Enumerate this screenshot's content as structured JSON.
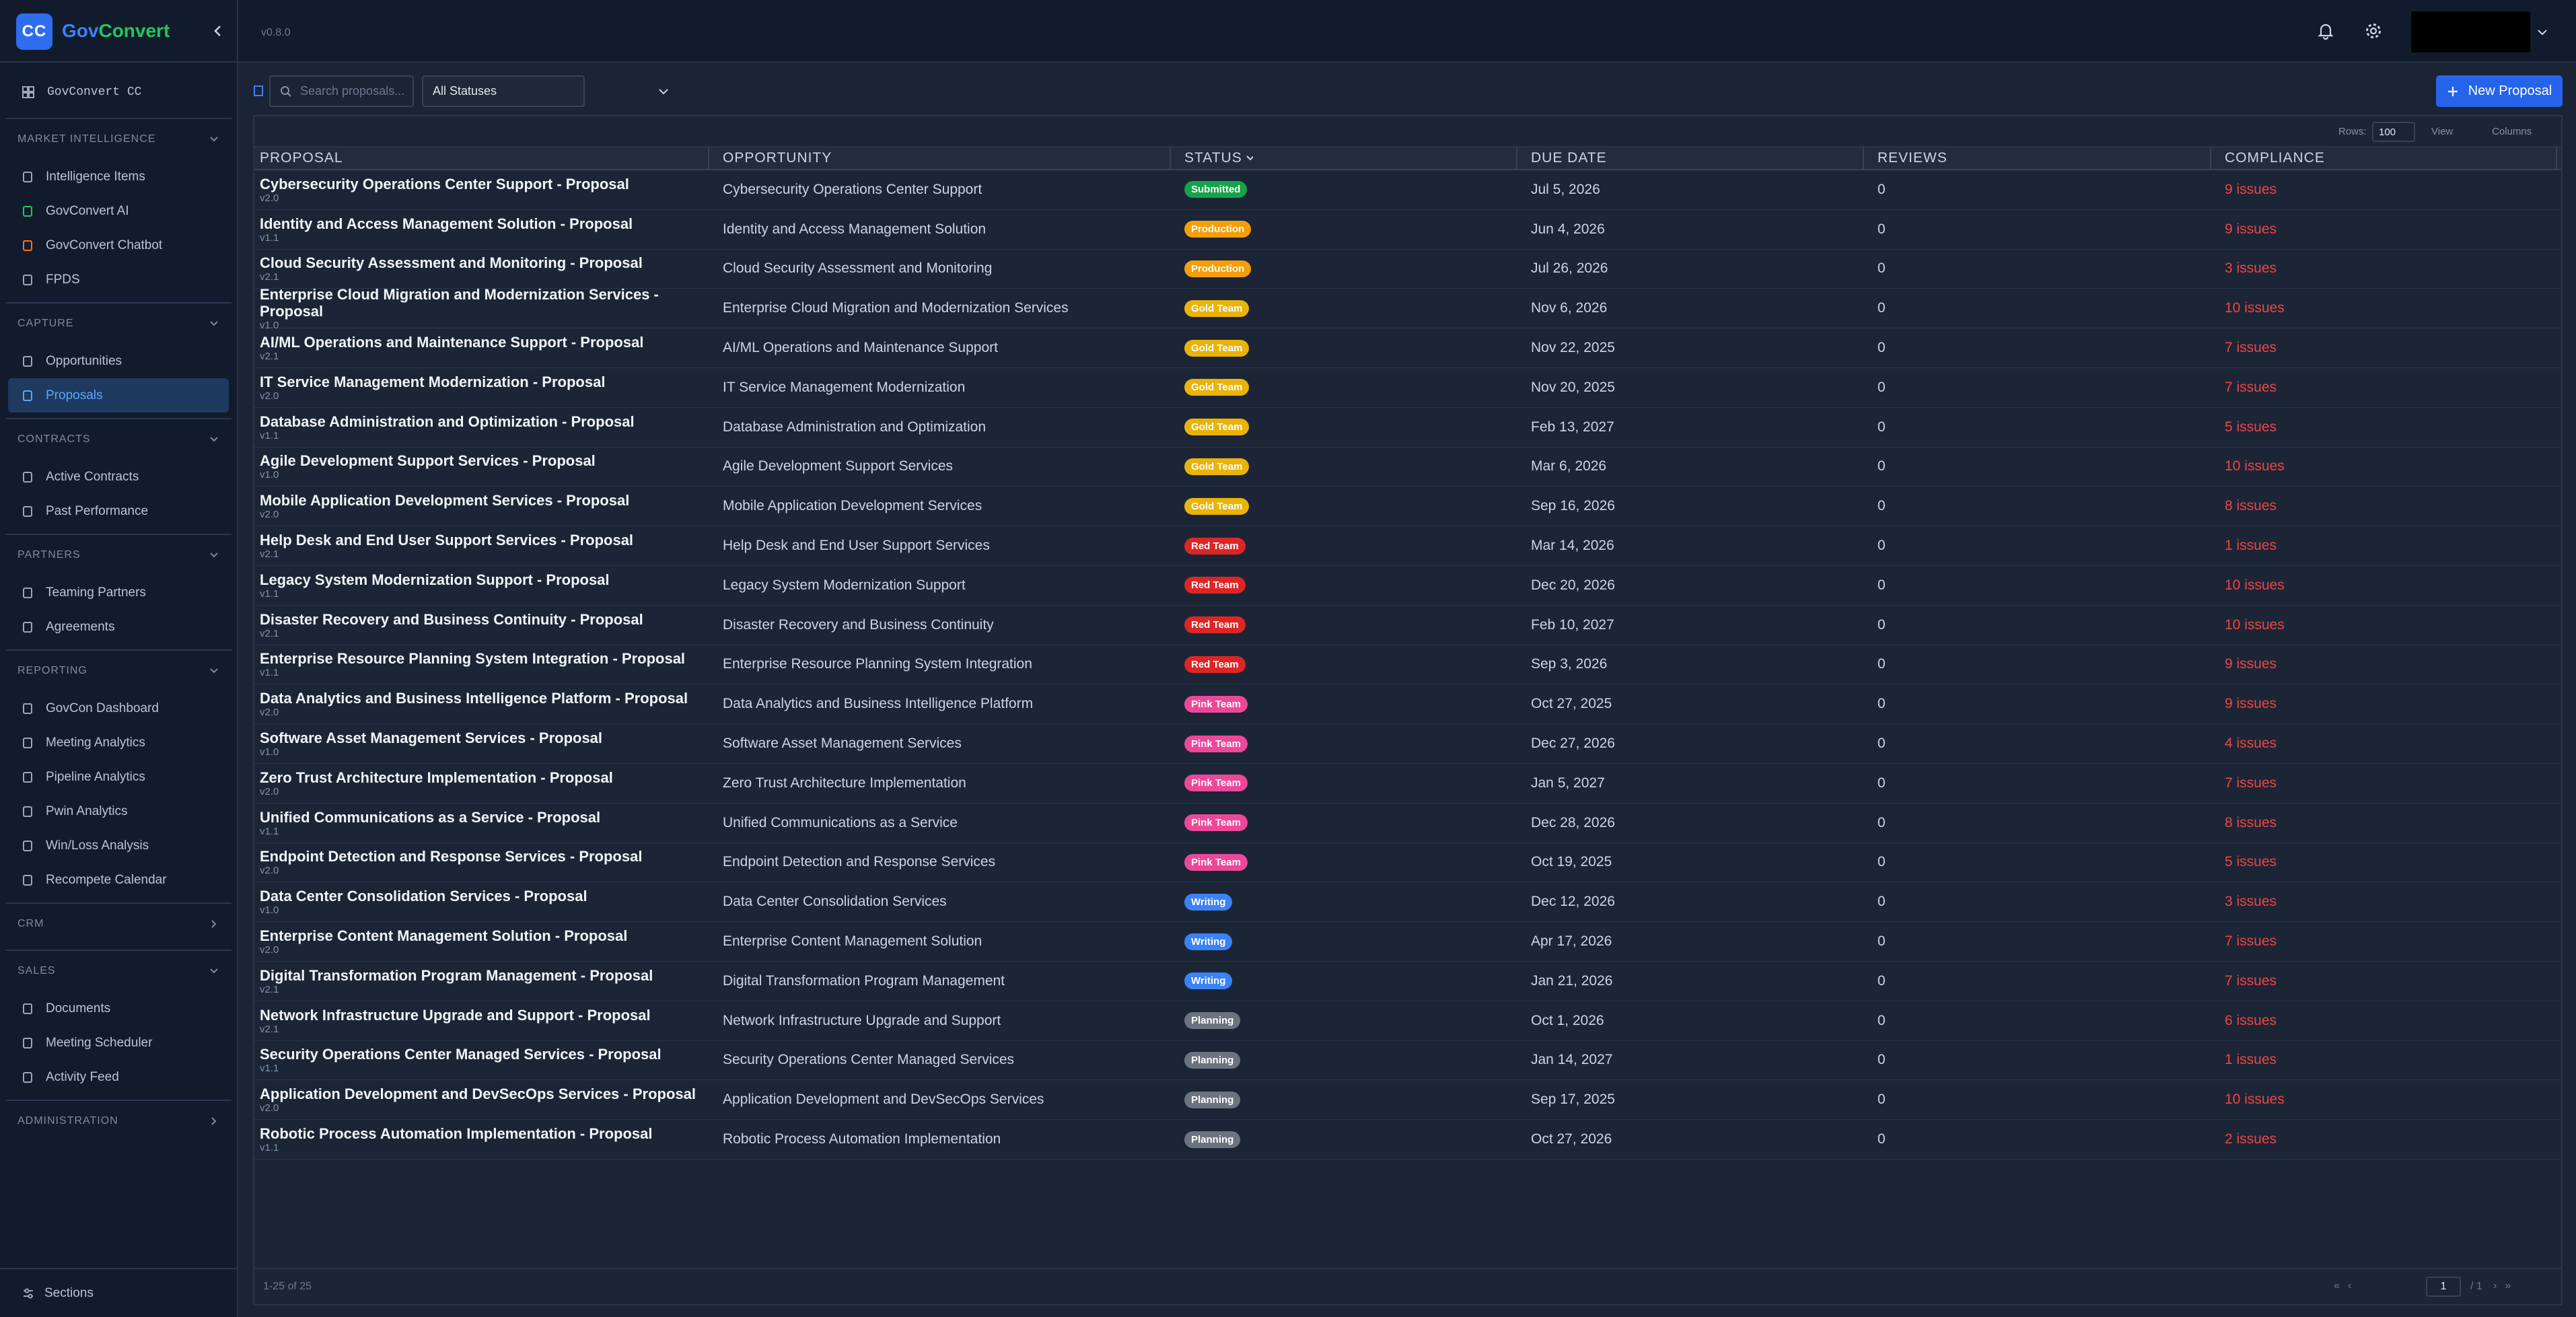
{
  "topbar": {
    "logo": "CC",
    "brand_first": "Gov",
    "brand_second": "Convert",
    "version": "v0.8.0"
  },
  "sidebar": {
    "top_item": "GovConvert CC",
    "footer": "Sections",
    "sections": [
      {
        "title": "MARKET INTELLIGENCE",
        "collapsed": false,
        "items": [
          {
            "label": "Intelligence Items"
          },
          {
            "label": "GovConvert AI",
            "icon_color": "#22c55e"
          },
          {
            "label": "GovConvert Chatbot",
            "icon_color": "#f97316"
          },
          {
            "label": "FPDS"
          }
        ]
      },
      {
        "title": "CAPTURE",
        "collapsed": false,
        "items": [
          {
            "label": "Opportunities"
          },
          {
            "label": "Proposals",
            "active": true
          }
        ]
      },
      {
        "title": "CONTRACTS",
        "collapsed": false,
        "items": [
          {
            "label": "Active Contracts"
          },
          {
            "label": "Past Performance"
          }
        ]
      },
      {
        "title": "PARTNERS",
        "collapsed": false,
        "items": [
          {
            "label": "Teaming Partners"
          },
          {
            "label": "Agreements"
          }
        ]
      },
      {
        "title": "REPORTING",
        "collapsed": false,
        "items": [
          {
            "label": "GovCon Dashboard"
          },
          {
            "label": "Meeting Analytics"
          },
          {
            "label": "Pipeline Analytics"
          },
          {
            "label": "Pwin Analytics"
          },
          {
            "label": "Win/Loss Analysis"
          },
          {
            "label": "Recompete Calendar"
          }
        ]
      },
      {
        "title": "CRM",
        "collapsed": true,
        "items": []
      },
      {
        "title": "SALES",
        "collapsed": false,
        "items": [
          {
            "label": "Documents"
          },
          {
            "label": "Meeting Scheduler"
          },
          {
            "label": "Activity Feed"
          }
        ]
      },
      {
        "title": "ADMINISTRATION",
        "collapsed": true,
        "items": []
      }
    ]
  },
  "toolbar": {
    "search_placeholder": "Search proposals...",
    "status_filter": "All Statuses",
    "new_button": "New Proposal",
    "rows_label": "Rows:",
    "rows_value": "100",
    "view": "View",
    "columns": "Columns"
  },
  "table": {
    "columns": [
      "PROPOSAL",
      "OPPORTUNITY",
      "STATUS",
      "DUE DATE",
      "REVIEWS",
      "COMPLIANCE"
    ],
    "status_colors": {
      "Submitted": "#16a34a",
      "Production": "#f59e0b",
      "Gold Team": "#eab308",
      "Red Team": "#dc2626",
      "Pink Team": "#ec4899",
      "Writing": "#3b82f6",
      "Planning": "#6b7280"
    },
    "rows": [
      {
        "proposal": "Cybersecurity Operations Center Support - Proposal",
        "version": "v2.0",
        "opportunity": "Cybersecurity Operations Center Support",
        "status": "Submitted",
        "due_date": "Jul 5, 2026",
        "reviews": 0,
        "compliance": "9 issues"
      },
      {
        "proposal": "Identity and Access Management Solution - Proposal",
        "version": "v1.1",
        "opportunity": "Identity and Access Management Solution",
        "status": "Production",
        "due_date": "Jun 4, 2026",
        "reviews": 0,
        "compliance": "9 issues"
      },
      {
        "proposal": "Cloud Security Assessment and Monitoring - Proposal",
        "version": "v2.1",
        "opportunity": "Cloud Security Assessment and Monitoring",
        "status": "Production",
        "due_date": "Jul 26, 2026",
        "reviews": 0,
        "compliance": "3 issues"
      },
      {
        "proposal": "Enterprise Cloud Migration and Modernization Services - Proposal",
        "version": "v1.0",
        "opportunity": "Enterprise Cloud Migration and Modernization Services",
        "status": "Gold Team",
        "due_date": "Nov 6, 2026",
        "reviews": 0,
        "compliance": "10 issues"
      },
      {
        "proposal": "AI/ML Operations and Maintenance Support - Proposal",
        "version": "v2.1",
        "opportunity": "AI/ML Operations and Maintenance Support",
        "status": "Gold Team",
        "due_date": "Nov 22, 2025",
        "reviews": 0,
        "compliance": "7 issues"
      },
      {
        "proposal": "IT Service Management Modernization - Proposal",
        "version": "v2.0",
        "opportunity": "IT Service Management Modernization",
        "status": "Gold Team",
        "due_date": "Nov 20, 2025",
        "reviews": 0,
        "compliance": "7 issues"
      },
      {
        "proposal": "Database Administration and Optimization - Proposal",
        "version": "v1.1",
        "opportunity": "Database Administration and Optimization",
        "status": "Gold Team",
        "due_date": "Feb 13, 2027",
        "reviews": 0,
        "compliance": "5 issues"
      },
      {
        "proposal": "Agile Development Support Services - Proposal",
        "version": "v1.0",
        "opportunity": "Agile Development Support Services",
        "status": "Gold Team",
        "due_date": "Mar 6, 2026",
        "reviews": 0,
        "compliance": "10 issues"
      },
      {
        "proposal": "Mobile Application Development Services - Proposal",
        "version": "v2.0",
        "opportunity": "Mobile Application Development Services",
        "status": "Gold Team",
        "due_date": "Sep 16, 2026",
        "reviews": 0,
        "compliance": "8 issues"
      },
      {
        "proposal": "Help Desk and End User Support Services - Proposal",
        "version": "v2.1",
        "opportunity": "Help Desk and End User Support Services",
        "status": "Red Team",
        "due_date": "Mar 14, 2026",
        "reviews": 0,
        "compliance": "1 issues"
      },
      {
        "proposal": "Legacy System Modernization Support - Proposal",
        "version": "v1.1",
        "opportunity": "Legacy System Modernization Support",
        "status": "Red Team",
        "due_date": "Dec 20, 2026",
        "reviews": 0,
        "compliance": "10 issues"
      },
      {
        "proposal": "Disaster Recovery and Business Continuity - Proposal",
        "version": "v2.1",
        "opportunity": "Disaster Recovery and Business Continuity",
        "status": "Red Team",
        "due_date": "Feb 10, 2027",
        "reviews": 0,
        "compliance": "10 issues"
      },
      {
        "proposal": "Enterprise Resource Planning System Integration - Proposal",
        "version": "v1.1",
        "opportunity": "Enterprise Resource Planning System Integration",
        "status": "Red Team",
        "due_date": "Sep 3, 2026",
        "reviews": 0,
        "compliance": "9 issues"
      },
      {
        "proposal": "Data Analytics and Business Intelligence Platform - Proposal",
        "version": "v2.0",
        "opportunity": "Data Analytics and Business Intelligence Platform",
        "status": "Pink Team",
        "due_date": "Oct 27, 2025",
        "reviews": 0,
        "compliance": "9 issues"
      },
      {
        "proposal": "Software Asset Management Services - Proposal",
        "version": "v1.0",
        "opportunity": "Software Asset Management Services",
        "status": "Pink Team",
        "due_date": "Dec 27, 2026",
        "reviews": 0,
        "compliance": "4 issues"
      },
      {
        "proposal": "Zero Trust Architecture Implementation - Proposal",
        "version": "v2.0",
        "opportunity": "Zero Trust Architecture Implementation",
        "status": "Pink Team",
        "due_date": "Jan 5, 2027",
        "reviews": 0,
        "compliance": "7 issues"
      },
      {
        "proposal": "Unified Communications as a Service - Proposal",
        "version": "v1.1",
        "opportunity": "Unified Communications as a Service",
        "status": "Pink Team",
        "due_date": "Dec 28, 2026",
        "reviews": 0,
        "compliance": "8 issues"
      },
      {
        "proposal": "Endpoint Detection and Response Services - Proposal",
        "version": "v2.0",
        "opportunity": "Endpoint Detection and Response Services",
        "status": "Pink Team",
        "due_date": "Oct 19, 2025",
        "reviews": 0,
        "compliance": "5 issues"
      },
      {
        "proposal": "Data Center Consolidation Services - Proposal",
        "version": "v1.0",
        "opportunity": "Data Center Consolidation Services",
        "status": "Writing",
        "due_date": "Dec 12, 2026",
        "reviews": 0,
        "compliance": "3 issues"
      },
      {
        "proposal": "Enterprise Content Management Solution - Proposal",
        "version": "v2.0",
        "opportunity": "Enterprise Content Management Solution",
        "status": "Writing",
        "due_date": "Apr 17, 2026",
        "reviews": 0,
        "compliance": "7 issues"
      },
      {
        "proposal": "Digital Transformation Program Management - Proposal",
        "version": "v2.1",
        "opportunity": "Digital Transformation Program Management",
        "status": "Writing",
        "due_date": "Jan 21, 2026",
        "reviews": 0,
        "compliance": "7 issues"
      },
      {
        "proposal": "Network Infrastructure Upgrade and Support - Proposal",
        "version": "v2.1",
        "opportunity": "Network Infrastructure Upgrade and Support",
        "status": "Planning",
        "due_date": "Oct 1, 2026",
        "reviews": 0,
        "compliance": "6 issues"
      },
      {
        "proposal": "Security Operations Center Managed Services - Proposal",
        "version": "v1.1",
        "opportunity": "Security Operations Center Managed Services",
        "status": "Planning",
        "due_date": "Jan 14, 2027",
        "reviews": 0,
        "compliance": "1 issues"
      },
      {
        "proposal": "Application Development and DevSecOps Services - Proposal",
        "version": "v2.0",
        "opportunity": "Application Development and DevSecOps Services",
        "status": "Planning",
        "due_date": "Sep 17, 2025",
        "reviews": 0,
        "compliance": "10 issues"
      },
      {
        "proposal": "Robotic Process Automation Implementation - Proposal",
        "version": "v1.1",
        "opportunity": "Robotic Process Automation Implementation",
        "status": "Planning",
        "due_date": "Oct 27, 2026",
        "reviews": 0,
        "compliance": "2 issues"
      }
    ]
  },
  "footer": {
    "range": "1-25 of 25",
    "page": "1",
    "total_pages": "/ 1"
  }
}
